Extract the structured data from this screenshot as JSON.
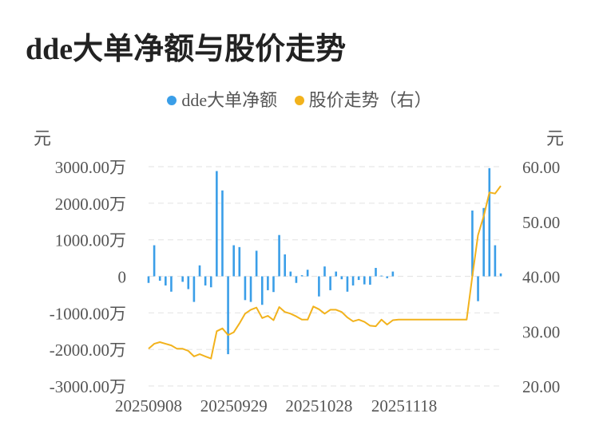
{
  "title": "dde大单净额与股价走势",
  "legend": [
    {
      "label": "dde大单净额",
      "color": "#3a9ee8"
    },
    {
      "label": "股价走势（右）",
      "color": "#f2b21c"
    }
  ],
  "axis_units": {
    "left": "元",
    "right": "元"
  },
  "colors": {
    "bar": "#3a9ee8",
    "line": "#f2b21c",
    "grid": "#e6e6e6",
    "text": "#555555",
    "title": "#222222"
  },
  "chart_data": {
    "type": "bar+line",
    "x_tick_labels": [
      "20250908",
      "20250929",
      "20251028",
      "20251118"
    ],
    "y_left": {
      "ticks": [
        3000,
        2000,
        1000,
        0,
        -1000,
        -2000,
        -3000
      ],
      "tick_labels": [
        "3000.00万",
        "2000.00万",
        "1000.00万",
        "0",
        "-1000.00万",
        "-2000.00万",
        "-3000.00万"
      ],
      "range": [
        -3000,
        3000
      ]
    },
    "y_right": {
      "ticks": [
        60,
        50,
        40,
        30,
        20
      ],
      "tick_labels": [
        "60.00",
        "50.00",
        "40.00",
        "30.00",
        "20.00"
      ],
      "range": [
        20,
        60
      ]
    },
    "series": [
      {
        "name": "dde大单净额",
        "kind": "bar",
        "axis": "left",
        "values": [
          -180,
          850,
          -120,
          -250,
          -420,
          0,
          -150,
          -350,
          -700,
          300,
          -250,
          -300,
          2880,
          2350,
          -2130,
          850,
          800,
          -650,
          -700,
          700,
          -780,
          -380,
          -430,
          1130,
          600,
          130,
          -180,
          30,
          180,
          0,
          -550,
          270,
          -380,
          130,
          -80,
          -420,
          -250,
          -100,
          -220,
          -230,
          230,
          20,
          -50,
          130,
          0,
          0,
          0,
          0,
          0,
          0,
          0,
          0,
          0,
          0,
          0,
          0,
          0,
          1800,
          -680,
          1870,
          2960,
          850,
          80
        ]
      },
      {
        "name": "股价走势（右）",
        "kind": "line",
        "axis": "right",
        "values": [
          26.8,
          27.7,
          28.0,
          27.7,
          27.4,
          26.8,
          26.8,
          26.4,
          25.4,
          25.8,
          25.4,
          25.0,
          30.0,
          30.5,
          29.3,
          29.8,
          31.4,
          33.2,
          33.9,
          34.3,
          32.4,
          32.8,
          32.0,
          34.4,
          33.5,
          33.2,
          32.7,
          32.1,
          32.1,
          34.5,
          34.0,
          33.2,
          33.9,
          33.9,
          33.5,
          32.5,
          31.8,
          32.1,
          31.7,
          31.0,
          30.9,
          32.1,
          31.2,
          32.0,
          32.1,
          32.1,
          32.1,
          32.1,
          32.1,
          32.1,
          32.1,
          32.1,
          32.1,
          32.1,
          32.1,
          32.1,
          32.1,
          40.0,
          47.5,
          51.0,
          55.3,
          55.1,
          56.5
        ]
      }
    ],
    "grid": "horizontal dashed",
    "legend_position": "top-center"
  }
}
